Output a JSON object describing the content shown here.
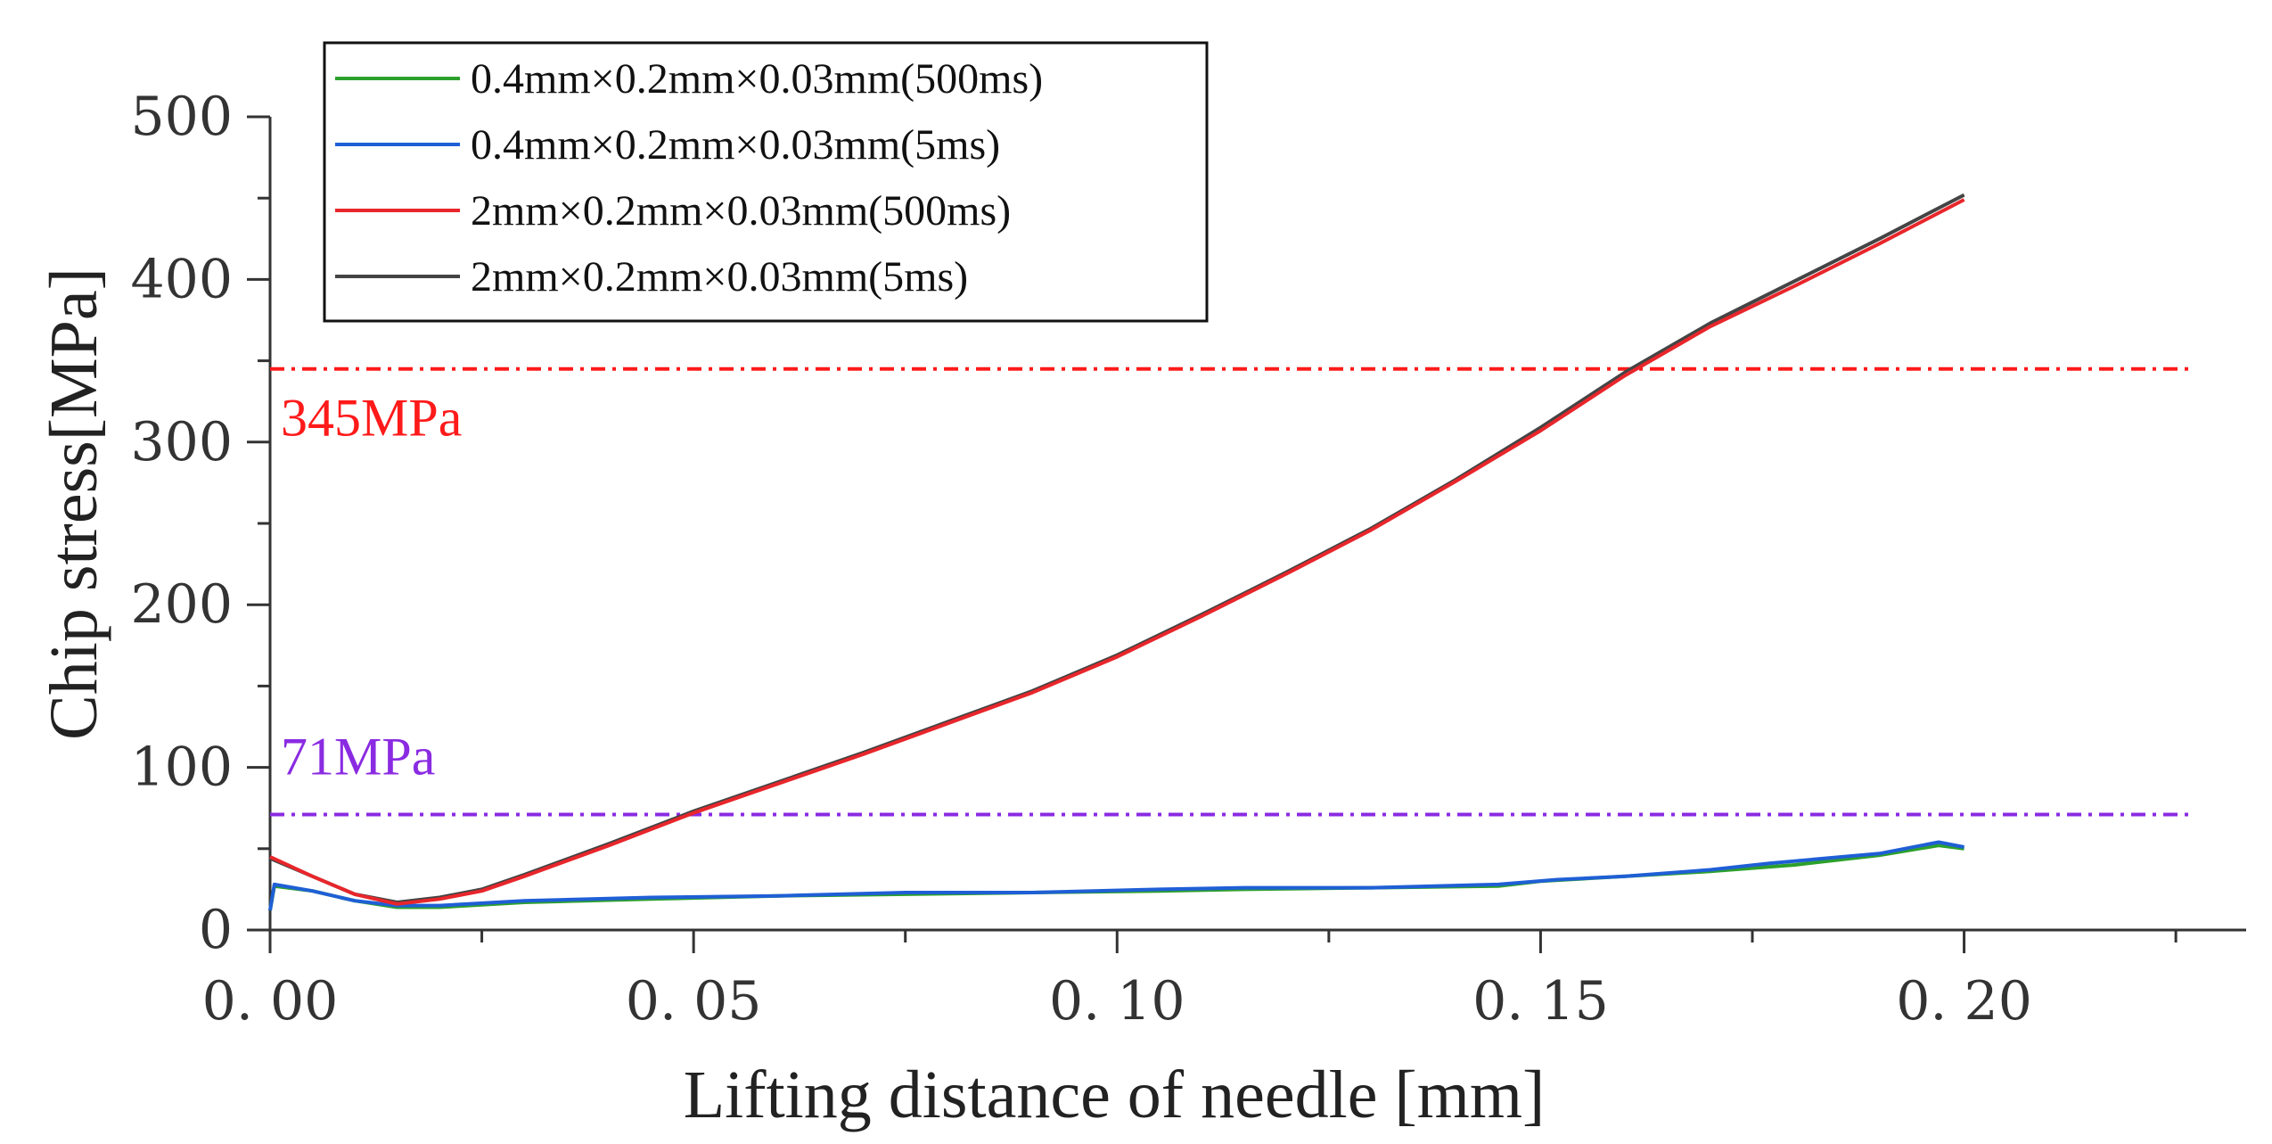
{
  "chart_data": {
    "type": "line",
    "title": "",
    "xlabel": "Lifting distance of needle [mm]",
    "ylabel": "Chip stress[MPa]",
    "xlim": [
      0,
      0.2333
    ],
    "ylim": [
      0,
      500
    ],
    "xticks": [
      0.0,
      0.05,
      0.1,
      0.15,
      0.2
    ],
    "xtick_labels": [
      "0. 00",
      "0. 05",
      "0. 10",
      "0. 15",
      "0. 20"
    ],
    "yticks": [
      0,
      100,
      200,
      300,
      400,
      500
    ],
    "ytick_labels": [
      "0",
      "100",
      "200",
      "300",
      "400",
      "500"
    ],
    "grid": false,
    "legend_position": "top-left",
    "series": [
      {
        "name": "0.4mm×0.2mm×0.03mm(500ms)",
        "color": "#2ca02c",
        "x": [
          0,
          0.0005,
          0.005,
          0.01,
          0.015,
          0.02,
          0.03,
          0.045,
          0.06,
          0.075,
          0.09,
          0.105,
          0.115,
          0.13,
          0.145,
          0.15,
          0.16,
          0.17,
          0.18,
          0.19,
          0.197,
          0.2
        ],
        "y": [
          12,
          27,
          24,
          18,
          14,
          14,
          17,
          19,
          21,
          22,
          23,
          24,
          25,
          26,
          27,
          30,
          33,
          36,
          40,
          46,
          52,
          50
        ]
      },
      {
        "name": "0.4mm×0.2mm×0.03mm(5ms)",
        "color": "#1f5fd6",
        "x": [
          0,
          0.0005,
          0.005,
          0.01,
          0.015,
          0.02,
          0.03,
          0.045,
          0.06,
          0.075,
          0.09,
          0.105,
          0.115,
          0.13,
          0.145,
          0.152,
          0.16,
          0.17,
          0.177,
          0.19,
          0.197,
          0.2
        ],
        "y": [
          12,
          28,
          24,
          18,
          15,
          15,
          18,
          20,
          21,
          23,
          23,
          25,
          26,
          26,
          28,
          31,
          33,
          37,
          41,
          47,
          54,
          51
        ]
      },
      {
        "name": "2mm×0.2mm×0.03mm(500ms)",
        "color": "#e8262b",
        "x": [
          0,
          0.005,
          0.01,
          0.015,
          0.02,
          0.025,
          0.03,
          0.04,
          0.05,
          0.06,
          0.07,
          0.08,
          0.09,
          0.1,
          0.11,
          0.12,
          0.13,
          0.14,
          0.15,
          0.16,
          0.17,
          0.18,
          0.19,
          0.2
        ],
        "y": [
          45,
          33,
          22,
          16,
          19,
          24,
          33,
          52,
          72,
          90,
          108,
          127,
          146,
          168,
          193,
          219,
          246,
          276,
          307,
          341,
          371,
          396,
          422,
          449
        ]
      },
      {
        "name": "2mm×0.2mm×0.03mm(5ms)",
        "color": "#444444",
        "x": [
          0,
          0.005,
          0.01,
          0.015,
          0.02,
          0.025,
          0.03,
          0.04,
          0.05,
          0.06,
          0.07,
          0.08,
          0.09,
          0.1,
          0.11,
          0.12,
          0.13,
          0.14,
          0.15,
          0.16,
          0.17,
          0.18,
          0.19,
          0.2
        ],
        "y": [
          44,
          33,
          22,
          17,
          20,
          25,
          34,
          53,
          73,
          91,
          109,
          128,
          147,
          169,
          194,
          220,
          247,
          277,
          309,
          343,
          373,
          399,
          425,
          452
        ]
      }
    ],
    "reference_lines": [
      {
        "value": 345,
        "label": "345MPa",
        "color": "#ff1a1a",
        "style": "dash-dot"
      },
      {
        "value": 71,
        "label": "71MPa",
        "color": "#8a2be2",
        "style": "dash-dot"
      }
    ]
  }
}
